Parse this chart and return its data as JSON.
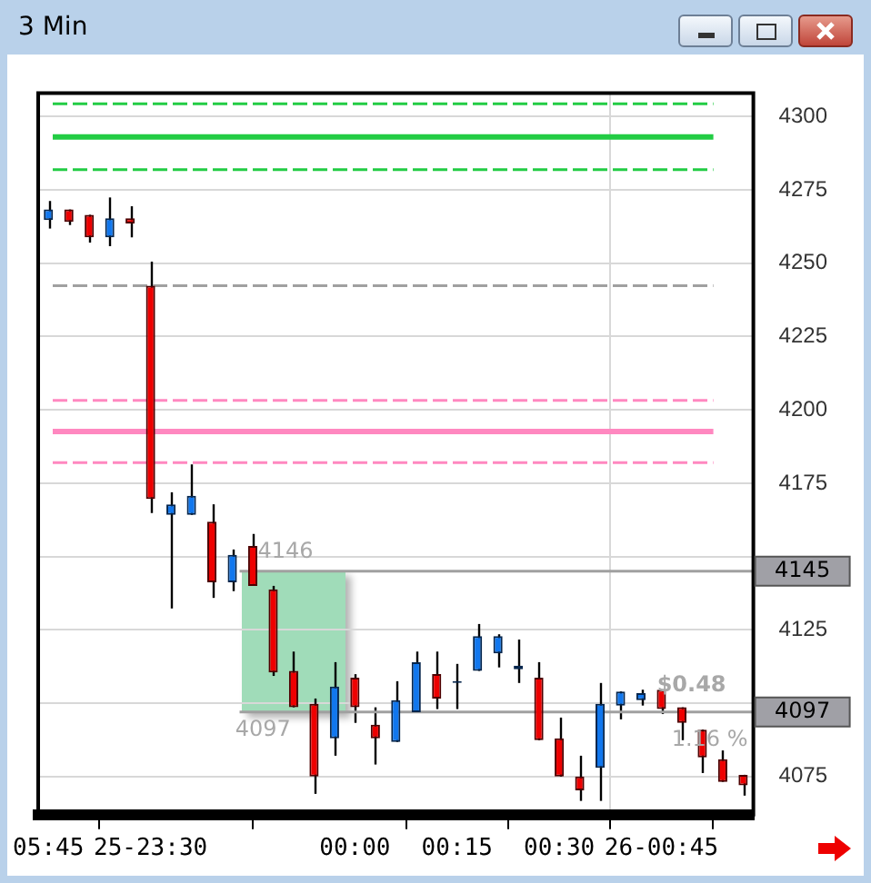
{
  "chart_data": {
    "type": "candlestick",
    "title": "3 Min",
    "categories": [
      "05:45",
      null,
      null,
      null,
      null,
      "25-23:30",
      null,
      null,
      null,
      null,
      null,
      null,
      null,
      null,
      null,
      "00:00",
      null,
      null,
      null,
      null,
      "00:15",
      null,
      null,
      null,
      null,
      "00:30",
      null,
      null,
      null,
      null,
      "26-00:45",
      null,
      null,
      null,
      null
    ],
    "ohlc": [
      [
        4264.7,
        4271.2,
        4261.8,
        4268.3
      ],
      [
        4268.3,
        4268.3,
        4263,
        4264.1
      ],
      [
        4266.5,
        4266.5,
        4257,
        4258.8
      ],
      [
        4258.8,
        4272.4,
        4255.8,
        4265.3
      ],
      [
        4265.3,
        4269.4,
        4258.8,
        4263.5
      ],
      [
        4242.3,
        4250.5,
        4164.8,
        4169.6
      ],
      [
        4164.2,
        4171.9,
        4132.3,
        4167.8
      ],
      [
        4164.2,
        4181.4,
        4164.2,
        4170.7
      ],
      [
        4161.9,
        4167.8,
        4135.9,
        4141.2
      ],
      [
        4141.2,
        4152.4,
        4138.2,
        4150.6
      ],
      [
        4153.6,
        4157.7,
        4140,
        4140
      ],
      [
        4138.8,
        4140,
        4109.3,
        4110.5
      ],
      [
        4111,
        4117.6,
        4098.6,
        4098.6
      ],
      [
        4099.8,
        4101.6,
        4069.1,
        4075
      ],
      [
        4088,
        4114,
        4082.1,
        4105.7
      ],
      [
        4108.7,
        4109.9,
        4093.3,
        4098.6
      ],
      [
        4092.7,
        4098.6,
        4079.1,
        4088
      ],
      [
        4086.8,
        4107.5,
        4086.8,
        4101
      ],
      [
        4096.9,
        4117.6,
        4096.9,
        4114
      ],
      [
        4109.9,
        4117.6,
        4098,
        4101.6
      ],
      [
        4106.9,
        4113.4,
        4098,
        4106.9
      ],
      [
        4111,
        4127,
        4111,
        4122.9
      ],
      [
        4117,
        4123.5,
        4112.2,
        4122.9
      ],
      [
        4111.6,
        4121.7,
        4106.9,
        4112.8
      ],
      [
        4108.7,
        4114,
        4087.4,
        4087.4
      ],
      [
        4088,
        4095.1,
        4075,
        4075
      ],
      [
        4075,
        4082.1,
        4066.7,
        4070.3
      ],
      [
        4078,
        4106.9,
        4066.7,
        4099.8
      ],
      [
        4099.2,
        4104,
        4094.5,
        4104
      ],
      [
        4101,
        4104.6,
        4099.2,
        4103.4
      ],
      [
        4104.6,
        4104.6,
        4096.3,
        4098
      ],
      [
        4098.6,
        4098.6,
        4087.4,
        4093.3
      ],
      [
        4091,
        4091,
        4076.2,
        4081.5
      ],
      [
        4080.9,
        4083.9,
        4073.2,
        4073.2
      ],
      [
        4075.6,
        4075.6,
        4068.5,
        4072
      ]
    ],
    "ylim": [
      4062,
      4308
    ],
    "yticks": [
      4075,
      {
        "value": 4100,
        "label": null
      },
      4125,
      {
        "value": 4150,
        "label": null
      },
      4175,
      4200,
      4225,
      4250,
      4275,
      4300
    ],
    "grid": true,
    "ref_lines": [
      {
        "axis": "y",
        "value": 4304.3,
        "color": "#22cc44",
        "line_style": "dashed"
      },
      {
        "axis": "y",
        "value": 4293,
        "color": "#22cc44",
        "line_style": "solid"
      },
      {
        "axis": "y",
        "value": 4281.9,
        "color": "#22cc44",
        "line_style": "dashed"
      },
      {
        "axis": "y",
        "value": 4242.3,
        "color": "#a0a0a0",
        "line_style": "dashed"
      },
      {
        "axis": "y",
        "value": 4203.2,
        "color": "#ff88c0",
        "line_style": "dashed"
      },
      {
        "axis": "y",
        "value": 4192.6,
        "color": "#ff88c0",
        "line_style": "solid"
      },
      {
        "axis": "y",
        "value": 4182,
        "color": "#ff88c0",
        "line_style": "dashed"
      },
      {
        "axis": "y",
        "value": 4145,
        "label": "4145",
        "color": "#a0a0a0",
        "line_style": "solid"
      },
      {
        "axis": "y",
        "value": 4097,
        "label": "4097",
        "color": "#a0a0a0",
        "line_style": "solid"
      }
    ],
    "annotations": [
      {
        "text": "4146",
        "y": 4146
      },
      {
        "text": "4097",
        "y": 4097
      },
      {
        "text": "$0.48",
        "y": 4101
      },
      {
        "text": "1.16 %",
        "y": 4093
      }
    ]
  }
}
